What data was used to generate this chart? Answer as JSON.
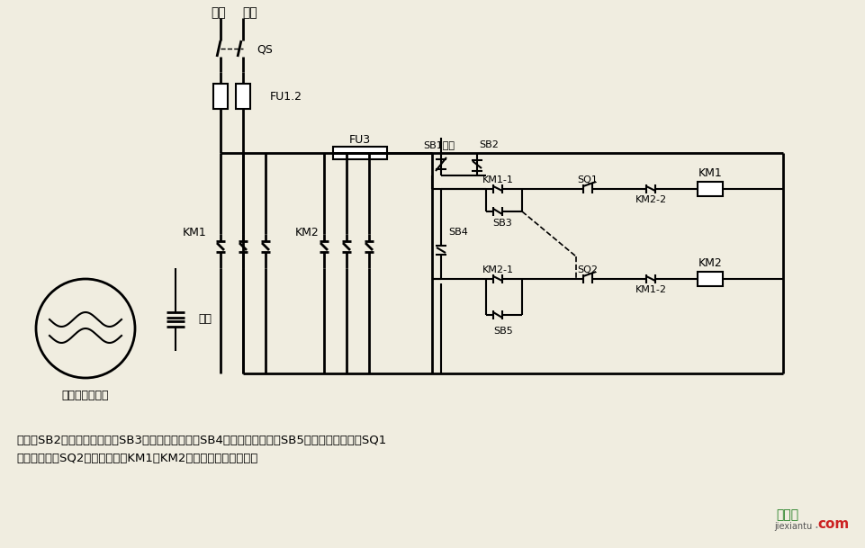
{
  "bg_color": "#f0ede0",
  "line_color": "#000000",
  "description_line1": "说明：SB2为上升启动按钮，SB3为上升点动按钮，SB4为下降启动按钮，SB5为下降点动按钮；SQ1",
  "description_line2": "为最高限位，SQ2为最低限位。KM1、KM2可用中间继电器代替。",
  "motor_label": "单相电容电动机",
  "cap_label": "电容"
}
